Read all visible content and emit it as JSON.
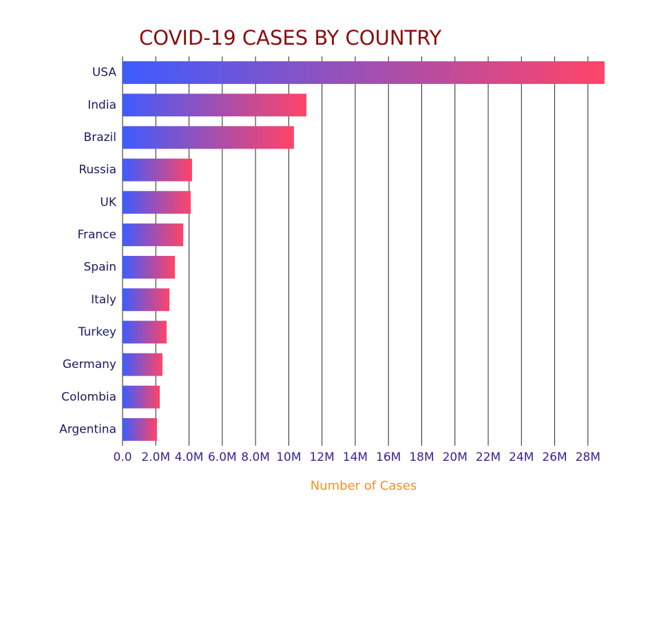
{
  "chart_data": {
    "type": "bar",
    "orientation": "horizontal",
    "title": "COVID-19 CASES BY COUNTRY",
    "x_label": "Number of Cases",
    "categories": [
      "USA",
      "India",
      "Brazil",
      "Russia",
      "UK",
      "France",
      "Spain",
      "Italy",
      "Turkey",
      "Germany",
      "Colombia",
      "Argentina"
    ],
    "values": [
      29000000,
      11060000,
      10310000,
      4180000,
      4100000,
      3650000,
      3150000,
      2820000,
      2650000,
      2400000,
      2240000,
      2070000
    ],
    "gradient": [
      "#3d5cff",
      "#ff4468"
    ],
    "xlim": [
      0,
      29000000
    ],
    "xticks": [
      {
        "value": 0,
        "label": "0.0"
      },
      {
        "value": 2000000,
        "label": "2.0M"
      },
      {
        "value": 4000000,
        "label": "4.0M"
      },
      {
        "value": 6000000,
        "label": "6.0M"
      },
      {
        "value": 8000000,
        "label": "8.0M"
      },
      {
        "value": 10000000,
        "label": "10M"
      },
      {
        "value": 12000000,
        "label": "12M"
      },
      {
        "value": 14000000,
        "label": "14M"
      },
      {
        "value": 16000000,
        "label": "16M"
      },
      {
        "value": 18000000,
        "label": "18M"
      },
      {
        "value": 20000000,
        "label": "20M"
      },
      {
        "value": 22000000,
        "label": "22M"
      },
      {
        "value": 24000000,
        "label": "24M"
      },
      {
        "value": 26000000,
        "label": "26M"
      },
      {
        "value": 28000000,
        "label": "28M"
      }
    ],
    "grid": true
  }
}
